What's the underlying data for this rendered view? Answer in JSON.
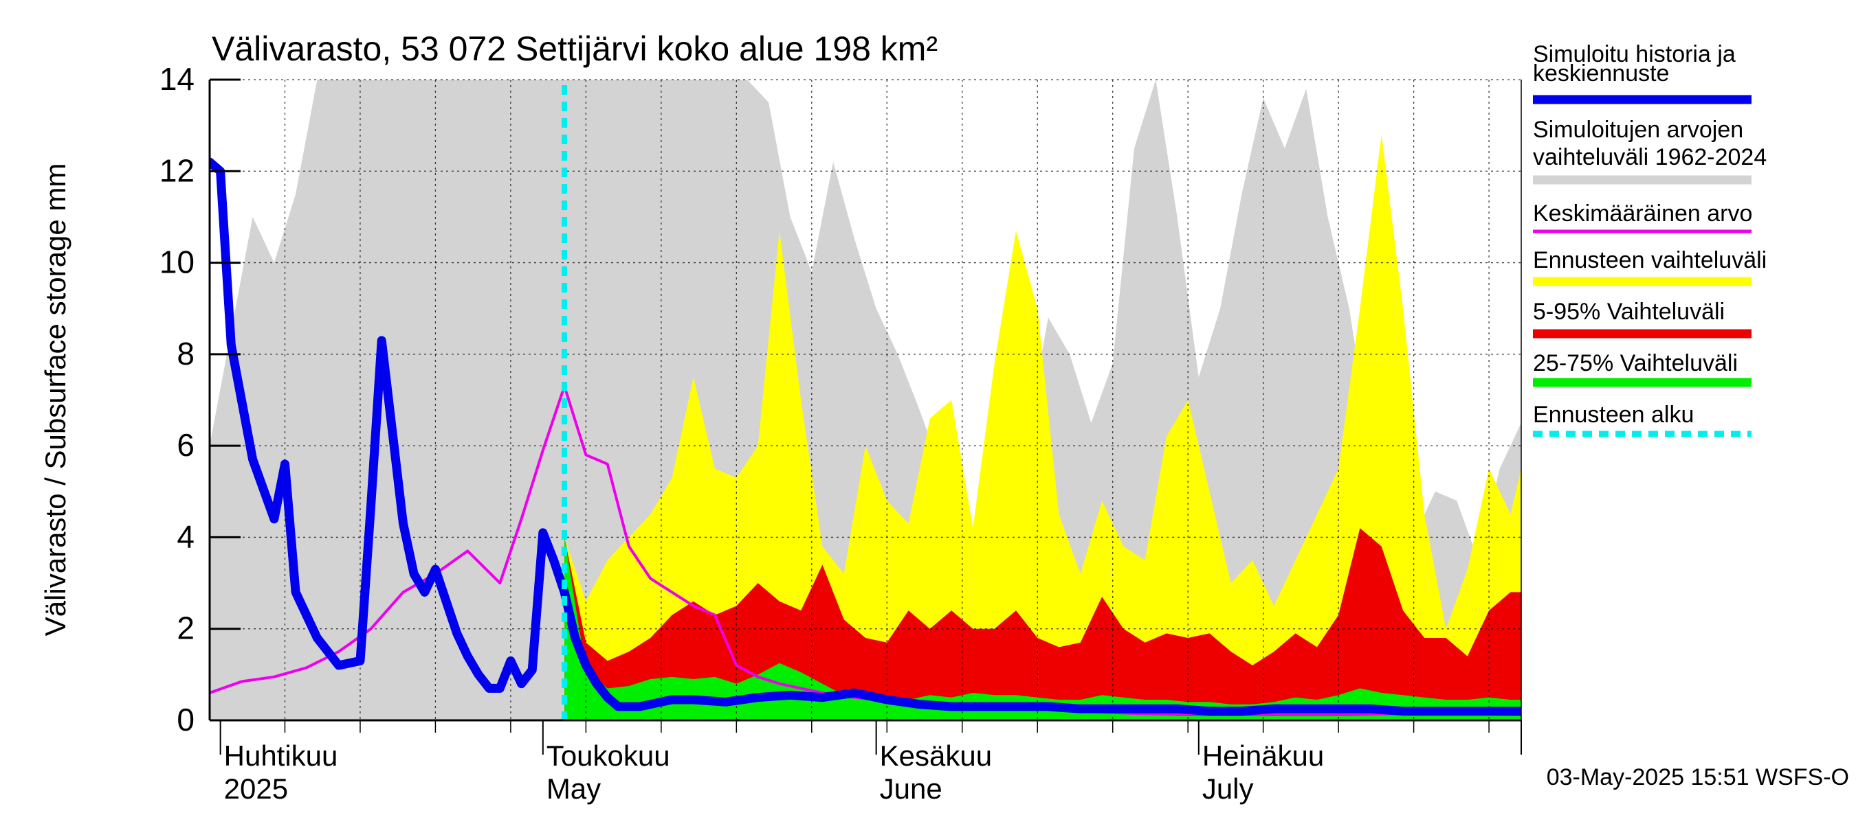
{
  "chart_data": {
    "type": "area",
    "title": "Välivarasto, 53 072 Settijärvi koko alue 198 km²",
    "ylabel": "Välivarasto / Subsurface storage  mm",
    "ylim": [
      0,
      14
    ],
    "yticks": [
      0,
      2,
      4,
      6,
      8,
      10,
      12,
      14
    ],
    "x_range": [
      "2025-03-31",
      "2025-07-31"
    ],
    "month_labels": [
      {
        "fi": "Huhtikuu",
        "en": "2025",
        "date": "2025-04-01"
      },
      {
        "fi": "Toukokuu",
        "en": "May",
        "date": "2025-05-01"
      },
      {
        "fi": "Kesäkuu",
        "en": "June",
        "date": "2025-06-01"
      },
      {
        "fi": "Heinäkuu",
        "en": "July",
        "date": "2025-07-01"
      }
    ],
    "forecast_start": "2025-05-03",
    "footer": "03-May-2025 15:51 WSFS-O",
    "legend": [
      {
        "label": "Simuloitu historia ja keskiennuste",
        "color": "#0000ee",
        "style": "thick"
      },
      {
        "label": "Simuloitujen arvojen vaihteluväli 1962-2024",
        "color": "#d3d3d3",
        "style": "thick"
      },
      {
        "label": "Keskimääräinen arvo",
        "color": "#ee00ee",
        "style": "thin"
      },
      {
        "label": "Ennusteen vaihteluväli",
        "color": "#ffff00",
        "style": "thick"
      },
      {
        "label": "5-95% Vaihteluväli",
        "color": "#ee0000",
        "style": "thick"
      },
      {
        "label": "25-75% Vaihteluväli",
        "color": "#00ee00",
        "style": "thick"
      },
      {
        "label": "Ennusteen alku",
        "color": "#00eeee",
        "style": "dashed"
      }
    ],
    "series": [
      {
        "name": "Simuloitujen arvojen vaihteluväli 1962-2024",
        "kind": "band",
        "color": "#d3d3d3",
        "x": [
          "2025-03-31",
          "2025-04-02",
          "2025-04-04",
          "2025-04-06",
          "2025-04-08",
          "2025-04-10",
          "2025-04-12",
          "2025-04-14",
          "2025-04-16",
          "2025-04-18",
          "2025-04-20",
          "2025-04-22",
          "2025-04-24",
          "2025-04-26",
          "2025-04-28",
          "2025-04-30",
          "2025-05-02",
          "2025-05-04",
          "2025-05-06",
          "2025-05-08",
          "2025-05-10",
          "2025-05-12",
          "2025-05-14",
          "2025-05-16",
          "2025-05-18",
          "2025-05-20",
          "2025-05-22",
          "2025-05-24",
          "2025-05-26",
          "2025-05-28",
          "2025-05-30",
          "2025-06-01",
          "2025-06-03",
          "2025-06-05",
          "2025-06-07",
          "2025-06-09",
          "2025-06-11",
          "2025-06-13",
          "2025-06-15",
          "2025-06-17",
          "2025-06-19",
          "2025-06-21",
          "2025-06-23",
          "2025-06-25",
          "2025-06-27",
          "2025-06-29",
          "2025-07-01",
          "2025-07-03",
          "2025-07-05",
          "2025-07-07",
          "2025-07-09",
          "2025-07-11",
          "2025-07-13",
          "2025-07-15",
          "2025-07-17",
          "2025-07-19",
          "2025-07-21",
          "2025-07-23",
          "2025-07-25",
          "2025-07-27",
          "2025-07-29",
          "2025-07-31"
        ],
        "low": [
          0,
          0,
          0,
          0,
          0,
          0,
          0,
          0,
          0,
          0,
          0,
          0,
          0,
          0,
          0,
          0,
          0,
          0,
          0,
          0,
          0,
          0,
          0,
          0,
          0,
          0,
          0,
          0,
          0,
          0,
          0,
          0,
          0,
          0,
          0,
          0,
          0,
          0,
          0,
          0,
          0,
          0,
          0,
          0,
          0,
          0,
          0,
          0,
          0,
          0,
          0,
          0,
          0,
          0,
          0,
          0,
          0,
          0,
          0,
          0,
          0,
          0
        ],
        "high": [
          6.0,
          8.5,
          11.0,
          10.0,
          11.5,
          14.0,
          14.0,
          14.0,
          14.0,
          14.0,
          14.0,
          14.0,
          14.0,
          14.0,
          14.0,
          14.0,
          14.0,
          14.0,
          14.0,
          14.0,
          14.0,
          14.0,
          14.0,
          14.0,
          14.0,
          14.0,
          13.5,
          11.0,
          9.8,
          12.2,
          10.5,
          9.0,
          8.0,
          6.8,
          5.5,
          4.2,
          4.0,
          6.6,
          6.2,
          8.8,
          8.0,
          6.5,
          7.8,
          12.5,
          14.0,
          11.0,
          7.5,
          9.0,
          11.5,
          13.6,
          12.5,
          13.8,
          11.0,
          9.0,
          6.0,
          4.2,
          4.0,
          5.0,
          4.8,
          3.5,
          5.5,
          6.5
        ]
      },
      {
        "name": "Ennusteen vaihteluväli",
        "kind": "band",
        "color": "#ffff00",
        "x": [
          "2025-05-03",
          "2025-05-05",
          "2025-05-07",
          "2025-05-09",
          "2025-05-11",
          "2025-05-13",
          "2025-05-15",
          "2025-05-17",
          "2025-05-19",
          "2025-05-21",
          "2025-05-23",
          "2025-05-25",
          "2025-05-27",
          "2025-05-29",
          "2025-05-31",
          "2025-06-02",
          "2025-06-04",
          "2025-06-06",
          "2025-06-08",
          "2025-06-10",
          "2025-06-12",
          "2025-06-14",
          "2025-06-16",
          "2025-06-18",
          "2025-06-20",
          "2025-06-22",
          "2025-06-24",
          "2025-06-26",
          "2025-06-28",
          "2025-06-30",
          "2025-07-02",
          "2025-07-04",
          "2025-07-06",
          "2025-07-08",
          "2025-07-10",
          "2025-07-12",
          "2025-07-14",
          "2025-07-16",
          "2025-07-18",
          "2025-07-20",
          "2025-07-22",
          "2025-07-24",
          "2025-07-26",
          "2025-07-28",
          "2025-07-30",
          "2025-07-31"
        ],
        "low": [
          0,
          0,
          0,
          0,
          0,
          0,
          0,
          0,
          0,
          0,
          0,
          0,
          0,
          0,
          0,
          0,
          0,
          0,
          0,
          0,
          0,
          0,
          0,
          0,
          0,
          0,
          0,
          0,
          0,
          0,
          0,
          0,
          0,
          0,
          0,
          0,
          0,
          0,
          0,
          0,
          0,
          0,
          0,
          0,
          0,
          0
        ],
        "high": [
          4.0,
          2.6,
          3.5,
          4.0,
          4.5,
          5.3,
          7.5,
          5.5,
          5.3,
          6.0,
          10.7,
          7.0,
          3.8,
          3.2,
          6.0,
          4.8,
          4.3,
          6.6,
          7.0,
          4.2,
          7.8,
          10.7,
          9.0,
          4.5,
          3.2,
          4.8,
          3.8,
          3.5,
          6.2,
          7.0,
          5.0,
          3.0,
          3.5,
          2.5,
          3.5,
          4.5,
          5.5,
          9.0,
          12.8,
          9.0,
          4.5,
          2.0,
          3.3,
          5.5,
          4.5,
          5.5
        ]
      },
      {
        "name": "5-95% Vaihteluväli",
        "kind": "band",
        "color": "#ee0000",
        "x": [
          "2025-05-03",
          "2025-05-05",
          "2025-05-07",
          "2025-05-09",
          "2025-05-11",
          "2025-05-13",
          "2025-05-15",
          "2025-05-17",
          "2025-05-19",
          "2025-05-21",
          "2025-05-23",
          "2025-05-25",
          "2025-05-27",
          "2025-05-29",
          "2025-05-31",
          "2025-06-02",
          "2025-06-04",
          "2025-06-06",
          "2025-06-08",
          "2025-06-10",
          "2025-06-12",
          "2025-06-14",
          "2025-06-16",
          "2025-06-18",
          "2025-06-20",
          "2025-06-22",
          "2025-06-24",
          "2025-06-26",
          "2025-06-28",
          "2025-06-30",
          "2025-07-02",
          "2025-07-04",
          "2025-07-06",
          "2025-07-08",
          "2025-07-10",
          "2025-07-12",
          "2025-07-14",
          "2025-07-16",
          "2025-07-18",
          "2025-07-20",
          "2025-07-22",
          "2025-07-24",
          "2025-07-26",
          "2025-07-28",
          "2025-07-30",
          "2025-07-31"
        ],
        "low": [
          0,
          0,
          0,
          0,
          0,
          0,
          0,
          0,
          0,
          0,
          0,
          0,
          0,
          0,
          0,
          0,
          0,
          0,
          0,
          0,
          0,
          0,
          0,
          0,
          0,
          0,
          0,
          0,
          0,
          0,
          0,
          0,
          0,
          0,
          0,
          0,
          0,
          0,
          0,
          0,
          0,
          0,
          0,
          0,
          0,
          0
        ],
        "high": [
          4.0,
          1.7,
          1.3,
          1.5,
          1.8,
          2.3,
          2.6,
          2.3,
          2.5,
          3.0,
          2.6,
          2.4,
          3.4,
          2.2,
          1.8,
          1.7,
          2.4,
          2.0,
          2.4,
          2.0,
          2.0,
          2.4,
          1.8,
          1.6,
          1.7,
          2.7,
          2.0,
          1.7,
          1.9,
          1.8,
          1.9,
          1.5,
          1.2,
          1.5,
          1.9,
          1.6,
          2.3,
          4.2,
          3.8,
          2.4,
          1.8,
          1.8,
          1.4,
          2.4,
          2.8,
          2.8
        ]
      },
      {
        "name": "25-75% Vaihteluväli",
        "kind": "band",
        "color": "#00ee00",
        "x": [
          "2025-05-03",
          "2025-05-05",
          "2025-05-07",
          "2025-05-09",
          "2025-05-11",
          "2025-05-13",
          "2025-05-15",
          "2025-05-17",
          "2025-05-19",
          "2025-05-21",
          "2025-05-23",
          "2025-05-25",
          "2025-05-27",
          "2025-05-29",
          "2025-05-31",
          "2025-06-02",
          "2025-06-04",
          "2025-06-06",
          "2025-06-08",
          "2025-06-10",
          "2025-06-12",
          "2025-06-14",
          "2025-06-16",
          "2025-06-18",
          "2025-06-20",
          "2025-06-22",
          "2025-06-24",
          "2025-06-26",
          "2025-06-28",
          "2025-06-30",
          "2025-07-02",
          "2025-07-04",
          "2025-07-06",
          "2025-07-08",
          "2025-07-10",
          "2025-07-12",
          "2025-07-14",
          "2025-07-16",
          "2025-07-18",
          "2025-07-20",
          "2025-07-22",
          "2025-07-24",
          "2025-07-26",
          "2025-07-28",
          "2025-07-30",
          "2025-07-31"
        ],
        "low": [
          0,
          0,
          0,
          0,
          0,
          0,
          0,
          0,
          0,
          0,
          0,
          0,
          0,
          0,
          0,
          0,
          0,
          0,
          0,
          0,
          0,
          0,
          0,
          0,
          0,
          0,
          0,
          0,
          0,
          0,
          0,
          0,
          0,
          0,
          0,
          0,
          0,
          0,
          0,
          0,
          0,
          0,
          0,
          0,
          0,
          0
        ],
        "high": [
          4.0,
          1.1,
          0.7,
          0.75,
          0.9,
          0.95,
          0.9,
          0.95,
          0.8,
          1.0,
          1.25,
          1.05,
          0.8,
          0.55,
          0.45,
          0.5,
          0.45,
          0.55,
          0.5,
          0.6,
          0.55,
          0.55,
          0.5,
          0.45,
          0.45,
          0.55,
          0.5,
          0.45,
          0.45,
          0.4,
          0.4,
          0.35,
          0.35,
          0.4,
          0.5,
          0.45,
          0.55,
          0.7,
          0.6,
          0.55,
          0.5,
          0.45,
          0.45,
          0.5,
          0.45,
          0.45
        ]
      },
      {
        "name": "Keskimääräinen arvo",
        "kind": "line",
        "color": "#ee00ee",
        "x": [
          "2025-03-31",
          "2025-04-03",
          "2025-04-06",
          "2025-04-09",
          "2025-04-12",
          "2025-04-15",
          "2025-04-18",
          "2025-04-21",
          "2025-04-24",
          "2025-04-27",
          "2025-04-29",
          "2025-05-01",
          "2025-05-03",
          "2025-05-05",
          "2025-05-07",
          "2025-05-09",
          "2025-05-11",
          "2025-05-13",
          "2025-05-15",
          "2025-05-17",
          "2025-05-19",
          "2025-05-21",
          "2025-05-23",
          "2025-05-25",
          "2025-05-28",
          "2025-06-01",
          "2025-06-05",
          "2025-06-10",
          "2025-06-15",
          "2025-06-20",
          "2025-06-25",
          "2025-06-30",
          "2025-07-05",
          "2025-07-10",
          "2025-07-15",
          "2025-07-20",
          "2025-07-25",
          "2025-07-31"
        ],
        "y": [
          0.6,
          0.85,
          0.95,
          1.15,
          1.5,
          2.0,
          2.8,
          3.2,
          3.7,
          3.0,
          4.4,
          5.9,
          7.3,
          5.8,
          5.6,
          3.8,
          3.1,
          2.8,
          2.5,
          2.3,
          1.2,
          0.95,
          0.8,
          0.7,
          0.55,
          0.45,
          0.35,
          0.3,
          0.25,
          0.2,
          0.15,
          0.12,
          0.12,
          0.12,
          0.12,
          0.15,
          0.15,
          0.12
        ]
      },
      {
        "name": "Simuloitu historia ja keskiennuste",
        "kind": "line",
        "color": "#0000ee",
        "x": [
          "2025-03-31",
          "2025-04-01",
          "2025-04-02",
          "2025-04-04",
          "2025-04-06",
          "2025-04-07",
          "2025-04-08",
          "2025-04-10",
          "2025-04-12",
          "2025-04-14",
          "2025-04-15",
          "2025-04-16",
          "2025-04-18",
          "2025-04-19",
          "2025-04-20",
          "2025-04-21",
          "2025-04-23",
          "2025-04-24",
          "2025-04-25",
          "2025-04-26",
          "2025-04-27",
          "2025-04-28",
          "2025-04-29",
          "2025-04-30",
          "2025-05-01",
          "2025-05-02",
          "2025-05-03",
          "2025-05-04",
          "2025-05-05",
          "2025-05-06",
          "2025-05-07",
          "2025-05-08",
          "2025-05-09",
          "2025-05-10",
          "2025-05-11",
          "2025-05-12",
          "2025-05-13",
          "2025-05-15",
          "2025-05-18",
          "2025-05-21",
          "2025-05-24",
          "2025-05-27",
          "2025-05-30",
          "2025-06-02",
          "2025-06-05",
          "2025-06-08",
          "2025-06-11",
          "2025-06-14",
          "2025-06-17",
          "2025-06-20",
          "2025-06-23",
          "2025-06-26",
          "2025-06-29",
          "2025-07-02",
          "2025-07-05",
          "2025-07-08",
          "2025-07-11",
          "2025-07-14",
          "2025-07-17",
          "2025-07-20",
          "2025-07-23",
          "2025-07-26",
          "2025-07-29",
          "2025-07-31"
        ],
        "y": [
          12.2,
          12.0,
          8.2,
          5.7,
          4.4,
          5.6,
          2.8,
          1.8,
          1.2,
          1.3,
          4.7,
          8.3,
          4.3,
          3.2,
          2.8,
          3.3,
          1.9,
          1.4,
          1.0,
          0.7,
          0.7,
          1.3,
          0.8,
          1.1,
          4.1,
          3.5,
          2.8,
          1.8,
          1.2,
          0.8,
          0.5,
          0.3,
          0.3,
          0.3,
          0.35,
          0.4,
          0.45,
          0.45,
          0.4,
          0.5,
          0.55,
          0.5,
          0.6,
          0.45,
          0.35,
          0.3,
          0.3,
          0.3,
          0.3,
          0.25,
          0.25,
          0.25,
          0.25,
          0.2,
          0.2,
          0.25,
          0.25,
          0.25,
          0.25,
          0.2,
          0.2,
          0.2,
          0.2,
          0.2
        ]
      }
    ]
  }
}
